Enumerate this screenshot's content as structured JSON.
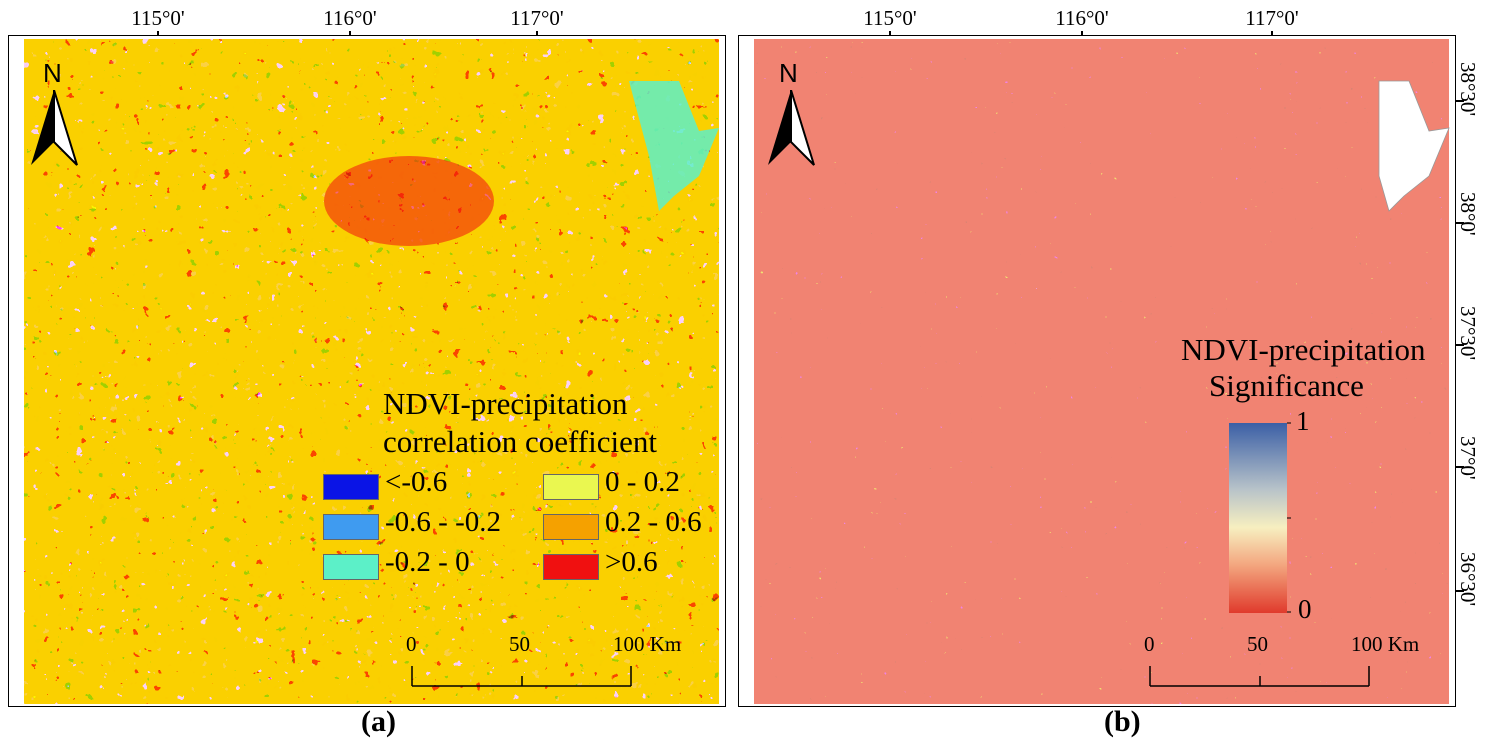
{
  "axes": {
    "lon_labels": [
      "115°0'",
      "116°0'",
      "117°0'"
    ],
    "lat_labels": [
      "38°30'",
      "38°0'",
      "37°30'",
      "37°0'",
      "36°30'"
    ]
  },
  "north_arrow": {
    "letter": "N",
    "icon": "north-arrow-icon"
  },
  "panel_a": {
    "caption": "(a)",
    "legend_title_line1": "NDVI-precipitation",
    "legend_title_line2": "correlation coefficient",
    "classes": [
      {
        "label": "<-0.6",
        "color": "#0a14e6"
      },
      {
        "label": "-0.6 - -0.2",
        "color": "#3f9bf0"
      },
      {
        "label": "-0.2 - 0",
        "color": "#5cf0c8"
      },
      {
        "label": "0 - 0.2",
        "color": "#eaf750"
      },
      {
        "label": "0.2 - 0.6",
        "color": "#f5a100"
      },
      {
        "label": ">0.6",
        "color": "#f01010"
      }
    ]
  },
  "panel_b": {
    "caption": "(b)",
    "legend_title_line1": "NDVI-precipitation",
    "legend_title_line2": "Significance",
    "gradient_max": "1",
    "gradient_min": "0",
    "gradient_colors": [
      "#3b5fa6",
      "#b8c3c9",
      "#f7efc0",
      "#f3a57e",
      "#e03a2c"
    ]
  },
  "scale_bar": {
    "labels": [
      "0",
      "50",
      "100 Km"
    ]
  }
}
